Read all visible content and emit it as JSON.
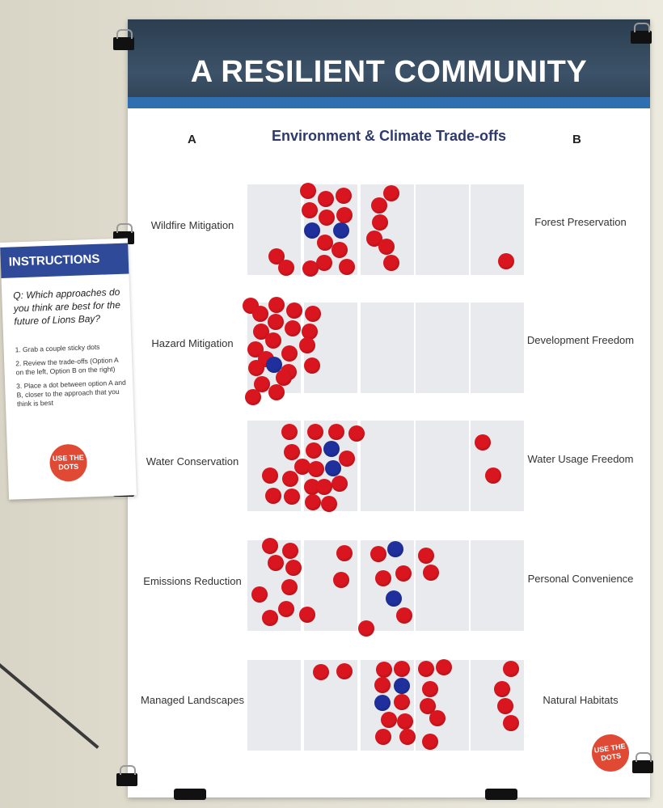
{
  "poster": {
    "title": "A RESILIENT COMMUNITY",
    "subtitle": "Environment & Climate Trade-offs",
    "col_a": "A",
    "col_b": "B",
    "sticker": "USE THE DOTS",
    "rows": [
      {
        "left": "Wildfire Mitigation",
        "right": "Forest Preservation"
      },
      {
        "left": "Hazard Mitigation",
        "right": "Development Freedom"
      },
      {
        "left": "Water Conservation",
        "right": "Water Usage Freedom"
      },
      {
        "left": "Emissions Reduction",
        "right": "Personal Convenience"
      },
      {
        "left": "Managed Landscapes",
        "right": "Natural Habitats"
      }
    ]
  },
  "instructions": {
    "header": "INSTRUCTIONS",
    "question": "Q: Which approaches do you think are best for the future of Lions Bay?",
    "steps": [
      "1. Grab a couple sticky dots",
      "2. Review the trade-offs (Option A on the left, Option B on the right)",
      "3. Place a dot between option A and B, closer to the approach that you think is best"
    ],
    "sticker": "USE THE DOTS"
  },
  "colors": {
    "red_dot": "#d9161f",
    "blue_dot": "#1f2f9c",
    "banner": "#2c3e50",
    "accent": "#2f6fb0"
  }
}
